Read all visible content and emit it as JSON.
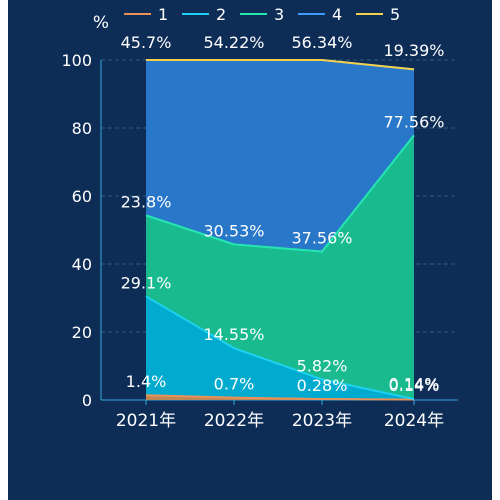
{
  "chart_data": {
    "type": "area",
    "stacked": true,
    "title": "",
    "xlabel": "",
    "ylabel": "%",
    "ylim": [
      0,
      100
    ],
    "yticks": [
      "0",
      "20",
      "40",
      "60",
      "80",
      "100"
    ],
    "categories": [
      "2021年",
      "2022年",
      "2023年",
      "2024年"
    ],
    "grid": true,
    "legend_position": "top",
    "series": [
      {
        "name": "1",
        "color": "#e8925a",
        "values": [
          1.4,
          0.7,
          0.28,
          0.14
        ],
        "labels": [
          "1.4%",
          "0.7%",
          "0.28%",
          "0.14%"
        ]
      },
      {
        "name": "2",
        "color": "#1fd1f0",
        "values": [
          29.1,
          14.55,
          5.82,
          0.14
        ],
        "labels": [
          "29.1%",
          "14.55%",
          "5.82%",
          "0.14%"
        ]
      },
      {
        "name": "3",
        "color": "#25e6b0",
        "values": [
          23.8,
          30.53,
          37.56,
          77.56
        ],
        "labels": [
          "23.8%",
          "30.53%",
          "37.56%",
          "77.56%"
        ]
      },
      {
        "name": "4",
        "color": "#3f9bff",
        "values": [
          45.7,
          54.22,
          56.34,
          19.39
        ],
        "labels": [
          "45.7%",
          "54.22%",
          "56.34%",
          "19.39%"
        ]
      },
      {
        "name": "5",
        "color": "#f2d04b",
        "values": [
          0,
          0,
          0,
          0
        ],
        "labels": []
      }
    ]
  }
}
